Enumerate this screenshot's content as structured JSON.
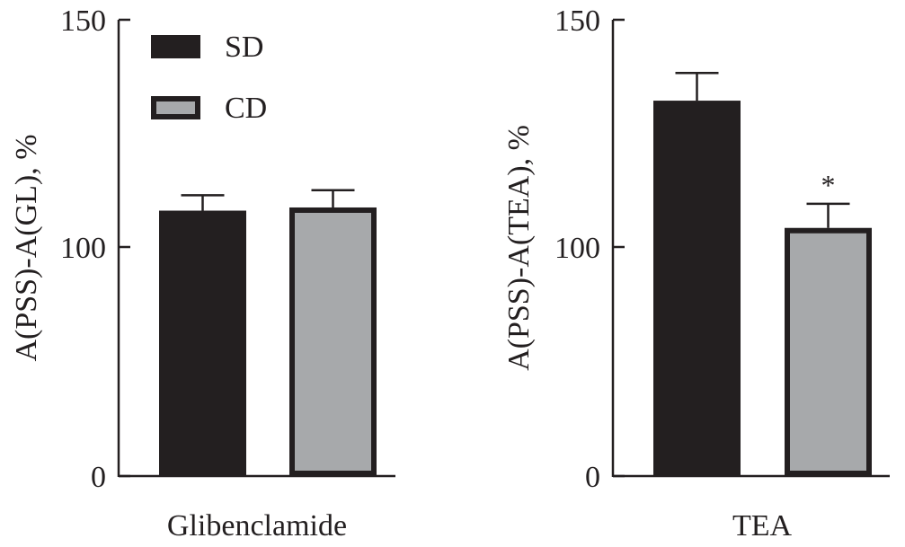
{
  "colors": {
    "sd": "#231f20",
    "cd": "#a7a9ab",
    "axis": "#231f20"
  },
  "legend": {
    "placement": "top-left",
    "entries": [
      "SD",
      "CD"
    ]
  },
  "chart_data": [
    {
      "type": "bar",
      "title": "",
      "xlabel": "Glibenclamide",
      "ylabel": "A(PSS)-A(GL), %",
      "yticks": [
        0,
        100,
        150
      ],
      "ytick_labels": [
        "0",
        "100",
        "150"
      ],
      "ylim": [
        0,
        150
      ],
      "categories": [
        "SD",
        "CD"
      ],
      "series": [
        {
          "name": "SD",
          "value": 108,
          "error": 3.4
        },
        {
          "name": "CD",
          "value": 108.7,
          "error": 3.8
        }
      ],
      "annotations": []
    },
    {
      "type": "bar",
      "title": "",
      "xlabel": "TEA",
      "ylabel": "A(PSS)-A(TEA), %",
      "yticks": [
        0,
        100,
        150
      ],
      "ytick_labels": [
        "0",
        "100",
        "150"
      ],
      "ylim": [
        0,
        150
      ],
      "categories": [
        "SD",
        "CD"
      ],
      "series": [
        {
          "name": "SD",
          "value": 132.2,
          "error": 6.1
        },
        {
          "name": "CD",
          "value": 104.2,
          "error": 5.3,
          "annotation": "*"
        }
      ],
      "annotations": [
        "*"
      ]
    }
  ]
}
